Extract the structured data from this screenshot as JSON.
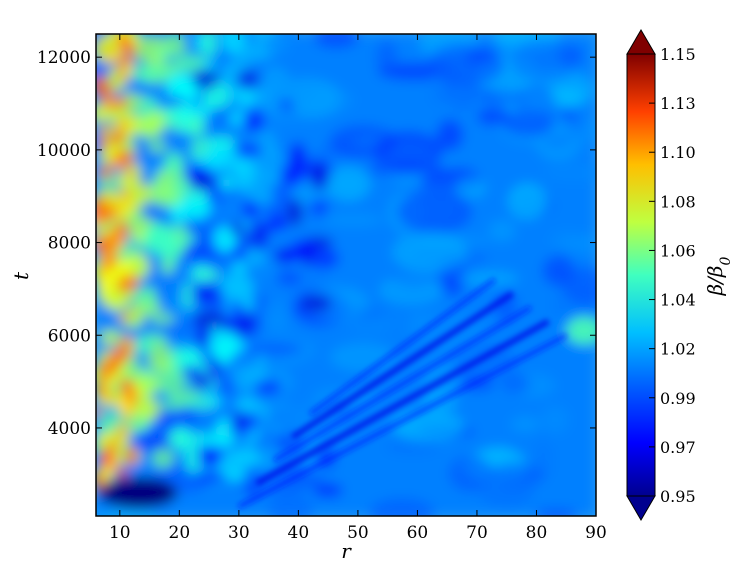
{
  "chart_data": {
    "type": "heatmap",
    "title": "",
    "xlabel": "r",
    "ylabel": "t",
    "xlim": [
      6,
      90
    ],
    "ylim": [
      2100,
      12500
    ],
    "x_ticks": [
      10,
      20,
      30,
      40,
      50,
      60,
      70,
      80,
      90
    ],
    "y_ticks": [
      4000,
      6000,
      8000,
      10000,
      12000
    ],
    "colorbar": {
      "label_main": "β/β",
      "label_sub": "0",
      "range": [
        0.95,
        1.15
      ],
      "extend": "both",
      "colormap": "jet",
      "ticks": [
        "0.95",
        "0.97",
        "0.99",
        "1.02",
        "1.04",
        "1.06",
        "1.08",
        "1.10",
        "1.13",
        "1.15"
      ]
    },
    "features": [
      {
        "name": "inner-edge-band",
        "r_range": [
          6,
          12
        ],
        "t_range": [
          2500,
          12500
        ],
        "value": 1.12
      },
      {
        "name": "inner-warm-region",
        "r_range": [
          8,
          22
        ],
        "t_range": [
          3000,
          12500
        ],
        "value": 1.07
      },
      {
        "name": "low-pocket-bottom-left",
        "r": 13,
        "t": 2600,
        "value": 0.95
      },
      {
        "name": "background",
        "value": 1.0
      },
      {
        "name": "diagonal-streak",
        "from": [
          30,
          2300
        ],
        "to": [
          85,
          6000
        ],
        "value": 0.98
      },
      {
        "name": "outer-bump",
        "r": 88,
        "t": 6100,
        "value": 1.04
      }
    ]
  }
}
